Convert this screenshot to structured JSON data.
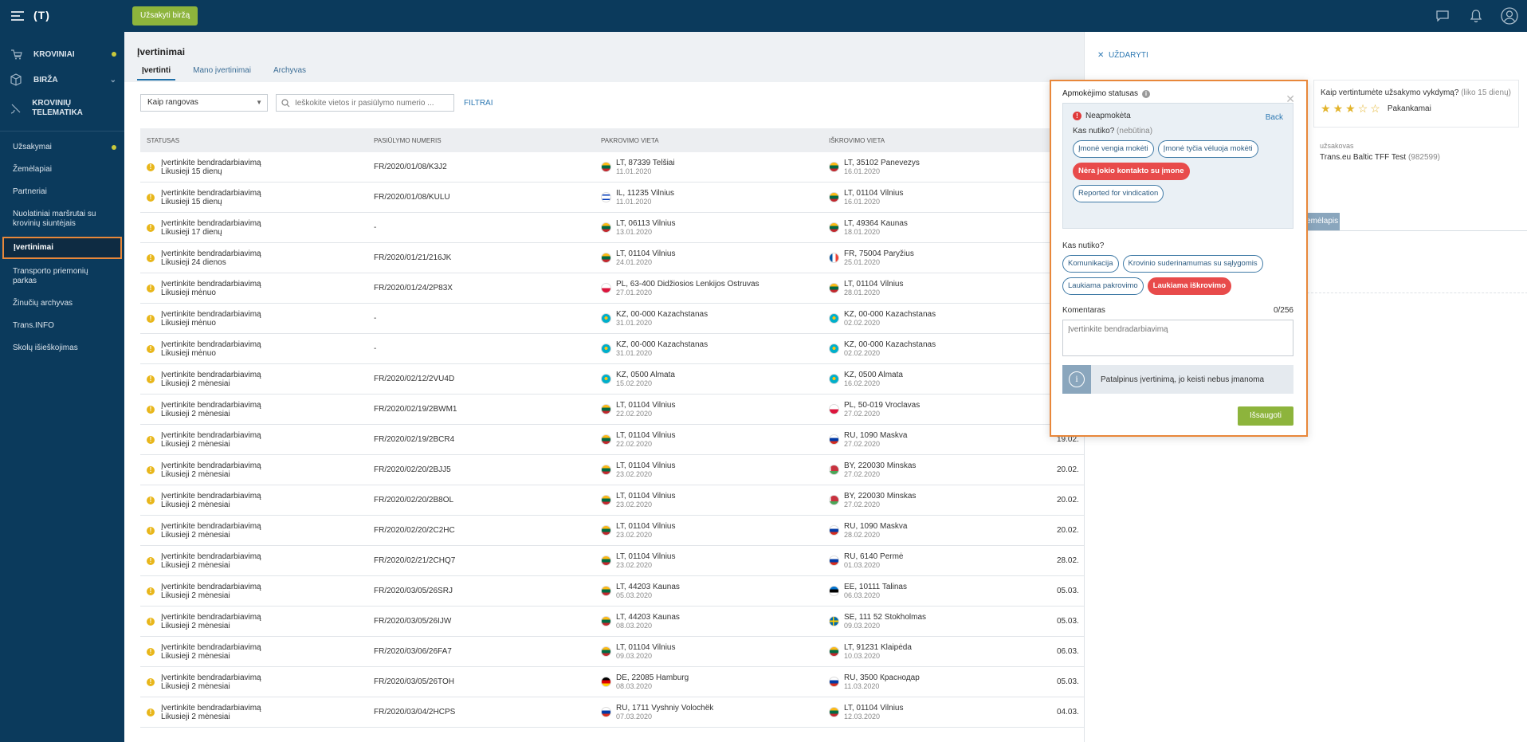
{
  "topbar": {
    "logo": "(T)",
    "order_button": "Užsakyti biržą"
  },
  "sidebar": {
    "main": [
      {
        "label": "KROVINIAI",
        "icon": "cargo-icon",
        "dot": true
      },
      {
        "label": "BIRŽA",
        "icon": "box-icon",
        "chevron": true
      },
      {
        "label": "KROVINIŲ TELEMATIKA",
        "icon": "satellite-icon"
      }
    ],
    "links": [
      {
        "label": "Užsakymai",
        "dot": true
      },
      {
        "label": "Žemėlapiai"
      },
      {
        "label": "Partneriai"
      },
      {
        "label": "Nuolatiniai maršrutai su krovinių siuntėjais"
      },
      {
        "label": "Įvertinimai",
        "active": true
      },
      {
        "label": "Transporto priemonių parkas"
      },
      {
        "label": "Žinučių archyvas"
      },
      {
        "label": "Trans.INFO"
      },
      {
        "label": "Skolų išieškojimas"
      }
    ]
  },
  "main": {
    "title": "Įvertinimai",
    "tabs": [
      "Įvertinti",
      "Mano įvertinimai",
      "Archyvas"
    ],
    "sort_value": "Kaip rangovas",
    "search_placeholder": "Ieškokite vietos ir pasiūlymo numerio ...",
    "filters_label": "FILTRAI",
    "columns": [
      "STATUSAS",
      "PASIŪLYMO NUMERIS",
      "PAKROVIMO VIETA",
      "IŠKROVIMO VIETA"
    ],
    "rows": [
      {
        "status": "Įvertinkite bendradarbiavimą",
        "left": "Likusieji 15 dienų",
        "num": "FR/2020/01/08/K3J2",
        "from_flag": "lt",
        "from": "LT, 87339 Telšiai",
        "from_date": "11.01.2020",
        "to_flag": "lt",
        "to": "LT, 35102 Panevezys",
        "to_date": "16.01.2020",
        "d5": ""
      },
      {
        "status": "Įvertinkite bendradarbiavimą",
        "left": "Likusieji 15 dienų",
        "num": "FR/2020/01/08/KULU",
        "from_flag": "il",
        "from": "IL, 11235 Vilnius",
        "from_date": "11.01.2020",
        "to_flag": "lt",
        "to": "LT, 01104 Vilnius",
        "to_date": "16.01.2020",
        "d5": ""
      },
      {
        "status": "Įvertinkite bendradarbiavimą",
        "left": "Likusieji 17 dienų",
        "num": "-",
        "from_flag": "lt",
        "from": "LT, 06113 Vilnius",
        "from_date": "13.01.2020",
        "to_flag": "lt",
        "to": "LT, 49364 Kaunas",
        "to_date": "18.01.2020",
        "d5": ""
      },
      {
        "status": "Įvertinkite bendradarbiavimą",
        "left": "Likusieji 24 dienos",
        "num": "FR/2020/01/21/216JK",
        "from_flag": "lt",
        "from": "LT, 01104 Vilnius",
        "from_date": "24.01.2020",
        "to_flag": "fr",
        "to": "FR, 75004 Paryžius",
        "to_date": "25.01.2020",
        "d5": ""
      },
      {
        "status": "Įvertinkite bendradarbiavimą",
        "left": "Likusieji mėnuo",
        "num": "FR/2020/01/24/2P83X",
        "from_flag": "pl",
        "from": "PL, 63-400 Didžiosios Lenkijos Ostruvas",
        "from_date": "27.01.2020",
        "to_flag": "lt",
        "to": "LT, 01104 Vilnius",
        "to_date": "28.01.2020",
        "d5": ""
      },
      {
        "status": "Įvertinkite bendradarbiavimą",
        "left": "Likusieji mėnuo",
        "num": "-",
        "from_flag": "kz",
        "from": "KZ, 00-000 Kazachstanas",
        "from_date": "31.01.2020",
        "to_flag": "kz",
        "to": "KZ, 00-000 Kazachstanas",
        "to_date": "02.02.2020",
        "d5": ""
      },
      {
        "status": "Įvertinkite bendradarbiavimą",
        "left": "Likusieji mėnuo",
        "num": "-",
        "from_flag": "kz",
        "from": "KZ, 00-000 Kazachstanas",
        "from_date": "31.01.2020",
        "to_flag": "kz",
        "to": "KZ, 00-000 Kazachstanas",
        "to_date": "02.02.2020",
        "d5": ""
      },
      {
        "status": "Įvertinkite bendradarbiavimą",
        "left": "Likusieji 2 mėnesiai",
        "num": "FR/2020/02/12/2VU4D",
        "from_flag": "kz",
        "from": "KZ, 0500 Almata",
        "from_date": "15.02.2020",
        "to_flag": "kz",
        "to": "KZ, 0500 Almata",
        "to_date": "16.02.2020",
        "d5": ""
      },
      {
        "status": "Įvertinkite bendradarbiavimą",
        "left": "Likusieji 2 mėnesiai",
        "num": "FR/2020/02/19/2BWM1",
        "from_flag": "lt",
        "from": "LT, 01104 Vilnius",
        "from_date": "22.02.2020",
        "to_flag": "pl",
        "to": "PL, 50-019 Vroclavas",
        "to_date": "27.02.2020",
        "d5": ""
      },
      {
        "status": "Įvertinkite bendradarbiavimą",
        "left": "Likusieji 2 mėnesiai",
        "num": "FR/2020/02/19/2BCR4",
        "from_flag": "lt",
        "from": "LT, 01104 Vilnius",
        "from_date": "22.02.2020",
        "to_flag": "ru",
        "to": "RU, 1090 Maskva",
        "to_date": "27.02.2020",
        "d5": "19.02."
      },
      {
        "status": "Įvertinkite bendradarbiavimą",
        "left": "Likusieji 2 mėnesiai",
        "num": "FR/2020/02/20/2BJJ5",
        "from_flag": "lt",
        "from": "LT, 01104 Vilnius",
        "from_date": "23.02.2020",
        "to_flag": "by",
        "to": "BY, 220030 Minskas",
        "to_date": "27.02.2020",
        "d5": "20.02."
      },
      {
        "status": "Įvertinkite bendradarbiavimą",
        "left": "Likusieji 2 mėnesiai",
        "num": "FR/2020/02/20/2B8OL",
        "from_flag": "lt",
        "from": "LT, 01104 Vilnius",
        "from_date": "23.02.2020",
        "to_flag": "by",
        "to": "BY, 220030 Minskas",
        "to_date": "27.02.2020",
        "d5": "20.02."
      },
      {
        "status": "Įvertinkite bendradarbiavimą",
        "left": "Likusieji 2 mėnesiai",
        "num": "FR/2020/02/20/2C2HC",
        "from_flag": "lt",
        "from": "LT, 01104 Vilnius",
        "from_date": "23.02.2020",
        "to_flag": "ru",
        "to": "RU, 1090 Maskva",
        "to_date": "28.02.2020",
        "d5": "20.02."
      },
      {
        "status": "Įvertinkite bendradarbiavimą",
        "left": "Likusieji 2 mėnesiai",
        "num": "FR/2020/02/21/2CHQ7",
        "from_flag": "lt",
        "from": "LT, 01104 Vilnius",
        "from_date": "23.02.2020",
        "to_flag": "ru",
        "to": "RU, 6140 Permė",
        "to_date": "01.03.2020",
        "d5": "28.02."
      },
      {
        "status": "Įvertinkite bendradarbiavimą",
        "left": "Likusieji 2 mėnesiai",
        "num": "FR/2020/03/05/26SRJ",
        "from_flag": "lt",
        "from": "LT, 44203 Kaunas",
        "from_date": "05.03.2020",
        "to_flag": "ee",
        "to": "EE, 10111 Talinas",
        "to_date": "06.03.2020",
        "d5": "05.03."
      },
      {
        "status": "Įvertinkite bendradarbiavimą",
        "left": "Likusieji 2 mėnesiai",
        "num": "FR/2020/03/05/26IJW",
        "from_flag": "lt",
        "from": "LT, 44203 Kaunas",
        "from_date": "08.03.2020",
        "to_flag": "se",
        "to": "SE, 111 52 Stokholmas",
        "to_date": "09.03.2020",
        "d5": "05.03."
      },
      {
        "status": "Įvertinkite bendradarbiavimą",
        "left": "Likusieji 2 mėnesiai",
        "num": "FR/2020/03/06/26FA7",
        "from_flag": "lt",
        "from": "LT, 01104 Vilnius",
        "from_date": "09.03.2020",
        "to_flag": "lt",
        "to": "LT, 91231 Klaipėda",
        "to_date": "10.03.2020",
        "d5": "06.03."
      },
      {
        "status": "Įvertinkite bendradarbiavimą",
        "left": "Likusieji 2 mėnesiai",
        "num": "FR/2020/03/05/26TOH",
        "from_flag": "de",
        "from": "DE, 22085 Hamburg",
        "from_date": "08.03.2020",
        "to_flag": "ru",
        "to": "RU, 3500 Краснодар",
        "to_date": "11.03.2020",
        "d5": "05.03."
      },
      {
        "status": "Įvertinkite bendradarbiavimą",
        "left": "Likusieji 2 mėnesiai",
        "num": "FR/2020/03/04/2HCPS",
        "from_flag": "ru",
        "from": "RU, 1711 Vyshniy Volochëk",
        "from_date": "07.03.2020",
        "to_flag": "lt",
        "to": "LT, 01104 Vilnius",
        "to_date": "12.03.2020",
        "d5": "04.03."
      }
    ]
  },
  "right_panel": {
    "close_label": "UŽDARYTI",
    "rate_question": "Kaip vertintumėte užsakymo vykdymą?",
    "rate_remaining": "(liko 15 dienų)",
    "stars_filled": 3,
    "stars_total": 5,
    "rate_word": "Pakankamai",
    "orderer_label": "užsakovas",
    "orderer_name": "Trans.eu Baltic TFF Test",
    "orderer_id": "(982599)",
    "map_tab": "Žemėlapis"
  },
  "popup": {
    "payment_status_label": "Apmokėjimo statusas",
    "unpaid_label": "Neapmokėta",
    "back_label": "Back",
    "what_happened_label": "Kas nutiko?",
    "optional_label": "(nebūtina)",
    "payment_chips": [
      {
        "label": "Įmonė vengia mokėti",
        "selected": false
      },
      {
        "label": "Įmonė tyčia vėluoja mokėti",
        "selected": false
      },
      {
        "label": "Nėra jokio kontakto su įmone",
        "selected": true
      },
      {
        "label": "Reported for vindication",
        "selected": false
      }
    ],
    "what_happened_label_2": "Kas nutiko?",
    "issue_chips": [
      {
        "label": "Komunikacija",
        "selected": false
      },
      {
        "label": "Krovinio suderinamumas su sąlygomis",
        "selected": false
      },
      {
        "label": "Laukiama pakrovimo",
        "selected": false
      },
      {
        "label": "Laukiama iškrovimo",
        "selected": true
      }
    ],
    "comment_label": "Komentaras",
    "comment_counter": "0/256",
    "comment_placeholder": "Įvertinkite bendradarbiavimą",
    "notice_text": "Patalpinus įvertinimą, jo keisti nebus įmanoma",
    "save_label": "Išsaugoti"
  },
  "colors": {
    "navy": "#0b3a5c",
    "accent_green": "#8db43c",
    "highlight_orange": "#e8873a",
    "selected_red": "#e84b4b",
    "warning_yellow": "#e8b61a"
  }
}
